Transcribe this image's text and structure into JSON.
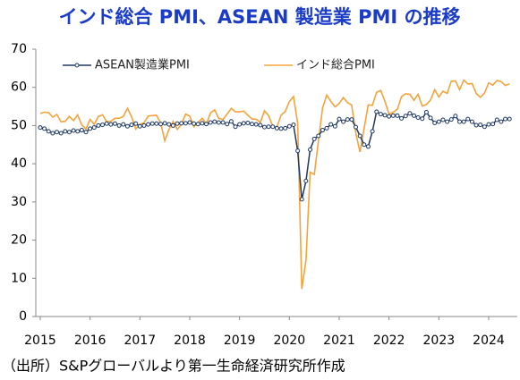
{
  "chart_data": {
    "type": "line",
    "title": "インド総合 PMI、ASEAN 製造業 PMI の推移",
    "source": "（出所）S&Pグローバルより第一生命経済研究所作成",
    "x": [
      2015,
      2015.083,
      2015.167,
      2015.25,
      2015.333,
      2015.417,
      2015.5,
      2015.583,
      2015.667,
      2015.75,
      2015.833,
      2015.917,
      2016,
      2016.083,
      2016.167,
      2016.25,
      2016.333,
      2016.417,
      2016.5,
      2016.583,
      2016.667,
      2016.75,
      2016.833,
      2016.917,
      2017,
      2017.083,
      2017.167,
      2017.25,
      2017.333,
      2017.417,
      2017.5,
      2017.583,
      2017.667,
      2017.75,
      2017.833,
      2017.917,
      2018,
      2018.083,
      2018.167,
      2018.25,
      2018.333,
      2018.417,
      2018.5,
      2018.583,
      2018.667,
      2018.75,
      2018.833,
      2018.917,
      2019,
      2019.083,
      2019.167,
      2019.25,
      2019.333,
      2019.417,
      2019.5,
      2019.583,
      2019.667,
      2019.75,
      2019.833,
      2019.917,
      2020,
      2020.083,
      2020.167,
      2020.25,
      2020.333,
      2020.417,
      2020.5,
      2020.583,
      2020.667,
      2020.75,
      2020.833,
      2020.917,
      2021,
      2021.083,
      2021.167,
      2021.25,
      2021.333,
      2021.417,
      2021.5,
      2021.583,
      2021.667,
      2021.75,
      2021.833,
      2021.917,
      2022,
      2022.083,
      2022.167,
      2022.25,
      2022.333,
      2022.417,
      2022.5,
      2022.583,
      2022.667,
      2022.75,
      2022.833,
      2022.917,
      2023,
      2023.083,
      2023.167,
      2023.25,
      2023.333,
      2023.417,
      2023.5,
      2023.583,
      2023.667,
      2023.75,
      2023.833,
      2023.917,
      2024,
      2024.083,
      2024.167,
      2024.25,
      2024.333,
      2024.417
    ],
    "series": [
      {
        "name": "ASEAN製造業PMI",
        "color": "#1f3864",
        "marker": true,
        "values": [
          49.5,
          49.2,
          48.5,
          48.0,
          48.3,
          48.0,
          48.5,
          48.3,
          48.7,
          48.5,
          48.8,
          48.3,
          49.2,
          49.5,
          50.0,
          50.2,
          50.5,
          50.3,
          50.5,
          50.0,
          50.3,
          49.8,
          50.2,
          50.5,
          49.8,
          50.0,
          50.3,
          50.5,
          50.5,
          50.4,
          50.6,
          50.3,
          50.0,
          50.5,
          50.6,
          50.6,
          50.8,
          50.5,
          50.4,
          50.6,
          50.4,
          50.8,
          51.0,
          50.8,
          50.8,
          50.4,
          51.1,
          49.7,
          50.3,
          50.6,
          50.7,
          50.4,
          50.3,
          50.1,
          49.6,
          49.7,
          49.7,
          49.3,
          49.2,
          49.3,
          49.8,
          50.2,
          43.4,
          30.7,
          35.5,
          43.7,
          46.5,
          47.3,
          48.8,
          49.3,
          50.3,
          49.8,
          51.7,
          51.0,
          51.6,
          51.6,
          49.6,
          47.3,
          45.0,
          44.5,
          48.5,
          53.6,
          53.0,
          52.7,
          52.4,
          52.6,
          52.6,
          51.9,
          52.5,
          53.2,
          52.6,
          52.1,
          51.8,
          53.5,
          52.0,
          50.7,
          51.0,
          51.5,
          51.0,
          51.6,
          52.5,
          51.0,
          51.0,
          51.7,
          51.0,
          50.1,
          50.2,
          49.7,
          50.3,
          50.4,
          51.5,
          51.0,
          51.7,
          51.7
        ]
      },
      {
        "name": "インド総合PMI",
        "color": "#f5a33a",
        "marker": false,
        "values": [
          53.2,
          53.5,
          53.4,
          52.2,
          52.9,
          51.0,
          51.1,
          52.4,
          51.3,
          52.8,
          50.2,
          49.1,
          51.6,
          50.3,
          52.4,
          52.8,
          51.0,
          51.1,
          51.9,
          51.9,
          52.4,
          54.5,
          52.3,
          49.1,
          50.3,
          50.7,
          52.5,
          52.6,
          52.7,
          50.7,
          46.0,
          49.0,
          51.1,
          49.0,
          50.3,
          53.0,
          52.5,
          49.7,
          50.8,
          51.9,
          50.4,
          53.3,
          54.1,
          51.9,
          51.6,
          53.0,
          54.5,
          53.6,
          53.6,
          53.8,
          52.7,
          51.7,
          51.7,
          50.8,
          53.9,
          52.6,
          49.8,
          49.6,
          52.7,
          53.7,
          56.3,
          57.6,
          50.6,
          7.2,
          14.8,
          37.8,
          37.2,
          46.0,
          54.6,
          58.0,
          56.3,
          54.9,
          55.8,
          57.3,
          56.0,
          55.4,
          48.1,
          43.1,
          49.2,
          55.4,
          55.3,
          58.7,
          59.2,
          56.4,
          53.0,
          53.5,
          54.3,
          57.6,
          58.3,
          58.2,
          56.6,
          58.2,
          55.1,
          55.5,
          56.7,
          59.4,
          57.5,
          59.0,
          58.4,
          61.6,
          61.7,
          59.4,
          61.9,
          60.9,
          61.0,
          58.4,
          57.4,
          58.5,
          61.2,
          60.6,
          61.8,
          61.5,
          60.5,
          60.9
        ]
      }
    ],
    "xlim": [
      2014.9,
      2024.6
    ],
    "xticks": [
      2015,
      2016,
      2017,
      2018,
      2019,
      2020,
      2021,
      2022,
      2023,
      2024
    ],
    "ylim": [
      0,
      70
    ],
    "yticks": [
      0,
      10,
      20,
      30,
      40,
      50,
      60,
      70
    ],
    "legend": "top-left",
    "grid": false
  }
}
